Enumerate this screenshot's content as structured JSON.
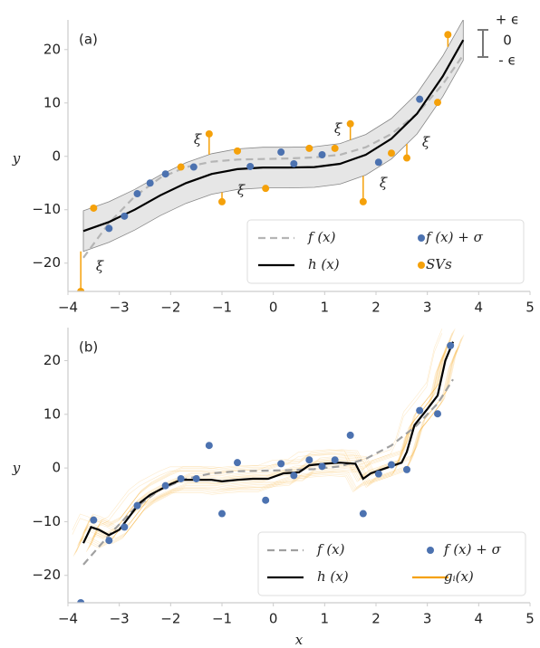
{
  "chart_data": [
    {
      "type": "line",
      "panel_label": "(a)",
      "ylabel": "y",
      "xlim": [
        -4,
        5
      ],
      "xticks": [
        {
          "value": -4,
          "label": "−4"
        },
        {
          "value": -3,
          "label": "−3"
        },
        {
          "value": -2,
          "label": "−2"
        },
        {
          "value": -1,
          "label": "−1"
        },
        0,
        1,
        2,
        3,
        4,
        5
      ],
      "ylim": [
        -25.3,
        24.2
      ],
      "yticks": [
        {
          "value": -20,
          "label": "−20"
        },
        {
          "value": -10,
          "label": "−10"
        },
        0,
        10,
        20
      ],
      "epsilon_labels": [
        "+ ϵ",
        "0",
        "- ϵ"
      ],
      "annotations": [
        "ξ",
        "ξ",
        "ξ",
        "ξ",
        "ξ",
        "ξ"
      ],
      "series": [
        {
          "name": "f (x)",
          "kind": "line",
          "dash": true,
          "color": "#b5b5b5",
          "x": [
            -3.7,
            -3.2,
            -2.7,
            -2.2,
            -1.7,
            -1.2,
            -0.7,
            -0.2,
            0.3,
            0.8,
            1.3,
            1.8,
            2.3,
            2.8,
            3.3,
            3.7
          ],
          "values": [
            -19,
            -12.5,
            -7.5,
            -4,
            -2,
            -1,
            -0.6,
            -0.5,
            -0.4,
            -0.2,
            0.3,
            1.7,
            4.2,
            8,
            13.5,
            19
          ]
        },
        {
          "name": "h (x)",
          "kind": "line",
          "color": "#000000",
          "epsilon": 3.8,
          "x": [
            -3.7,
            -3.2,
            -2.7,
            -2.2,
            -1.7,
            -1.2,
            -0.7,
            -0.2,
            0.3,
            0.8,
            1.3,
            1.8,
            2.3,
            2.8,
            3.3,
            3.7
          ],
          "values": [
            -14,
            -12.3,
            -10,
            -7.3,
            -5,
            -3.3,
            -2.4,
            -2.1,
            -2.1,
            -2,
            -1.4,
            0.3,
            3.3,
            8,
            15,
            21.8
          ]
        },
        {
          "name": "f (x) + σ",
          "kind": "scatter",
          "color": "#4c72b0",
          "x": [
            -3.2,
            -2.9,
            -2.65,
            -2.4,
            -2.1,
            -1.55,
            -0.45,
            0.15,
            0.4,
            0.95,
            2.05,
            2.85
          ],
          "values": [
            -13.5,
            -11.2,
            -7,
            -5,
            -3.3,
            -2,
            -1.9,
            0.8,
            -1.4,
            0.3,
            -1.1,
            10.7
          ]
        },
        {
          "name": "SVs",
          "kind": "scatter",
          "slack": true,
          "color": "#f5a10a",
          "x": [
            -3.75,
            -3.5,
            -1.8,
            -1.25,
            -1.0,
            -0.7,
            -0.15,
            0.7,
            1.2,
            1.5,
            1.75,
            2.3,
            2.6,
            3.2,
            3.4
          ],
          "values": [
            -25.3,
            -9.7,
            -2,
            4.2,
            -8.5,
            1,
            -6,
            1.5,
            1.5,
            6.1,
            -8.5,
            0.6,
            -0.3,
            10.1,
            22.8
          ]
        }
      ]
    },
    {
      "type": "line",
      "panel_label": "(b)",
      "ylabel": "y",
      "xlabel": "x",
      "xlim": [
        -4,
        5
      ],
      "xticks": [
        {
          "value": -4,
          "label": "−4"
        },
        {
          "value": -3,
          "label": "−3"
        },
        {
          "value": -2,
          "label": "−2"
        },
        {
          "value": -1,
          "label": "−1"
        },
        0,
        1,
        2,
        3,
        4,
        5
      ],
      "ylim": [
        -25.1,
        24.8
      ],
      "yticks": [
        {
          "value": -20,
          "label": "−20"
        },
        {
          "value": -10,
          "label": "−10"
        },
        0,
        10,
        20
      ],
      "series": [
        {
          "name": "f (x)",
          "kind": "line",
          "dash": true,
          "color": "#a0a0a0",
          "x": [
            -3.7,
            -3.2,
            -2.7,
            -2.2,
            -1.7,
            -1.2,
            -0.7,
            -0.2,
            0.3,
            0.8,
            1.3,
            1.8,
            2.3,
            2.8,
            3.2,
            3.5
          ],
          "values": [
            -18,
            -12.5,
            -7.5,
            -4,
            -2,
            -1,
            -0.6,
            -0.5,
            -0.4,
            -0.2,
            0.3,
            1.7,
            4.2,
            8,
            12,
            16.5
          ]
        },
        {
          "name": "h (x)",
          "kind": "line",
          "color": "#000000",
          "ensemble": true,
          "x": [
            -3.7,
            -3.55,
            -3.4,
            -3.2,
            -3.0,
            -2.8,
            -2.6,
            -2.4,
            -2.2,
            -2.0,
            -1.8,
            -1.5,
            -1.2,
            -1.0,
            -0.7,
            -0.4,
            -0.1,
            0.2,
            0.5,
            0.7,
            1.0,
            1.3,
            1.6,
            1.75,
            1.9,
            2.2,
            2.5,
            2.6,
            2.75,
            3.0,
            3.2,
            3.35,
            3.5
          ],
          "values": [
            -14,
            -11,
            -11.5,
            -12.5,
            -11.5,
            -9,
            -6.5,
            -5,
            -4,
            -3,
            -2.2,
            -2.2,
            -2.2,
            -2.5,
            -2.2,
            -2,
            -2,
            -1,
            -0.8,
            0.5,
            0.8,
            1,
            0.8,
            -2,
            -1,
            0,
            1,
            3,
            8,
            11,
            13.5,
            20,
            23.5
          ]
        },
        {
          "name": "f (x) + σ",
          "kind": "scatter",
          "color": "#4c72b0",
          "x": [
            -3.75,
            -3.5,
            -3.2,
            -2.9,
            -2.65,
            -2.1,
            -1.8,
            -1.5,
            -1.25,
            -1.0,
            -0.7,
            -0.15,
            0.15,
            0.4,
            0.7,
            0.95,
            1.2,
            1.5,
            1.75,
            2.05,
            2.3,
            2.6,
            2.85,
            3.2,
            3.45
          ],
          "values": [
            -25.1,
            -9.7,
            -13.5,
            -11,
            -7,
            -3.3,
            -2,
            -2,
            4.2,
            -8.5,
            1,
            -6,
            0.8,
            -1.4,
            1.5,
            0.3,
            1.5,
            6.1,
            -8.5,
            -1.1,
            0.6,
            -0.3,
            10.7,
            10.1,
            22.8
          ]
        },
        {
          "name": "gᵢ(x)",
          "kind": "legend-line",
          "color": "#f5a10a"
        }
      ]
    }
  ]
}
